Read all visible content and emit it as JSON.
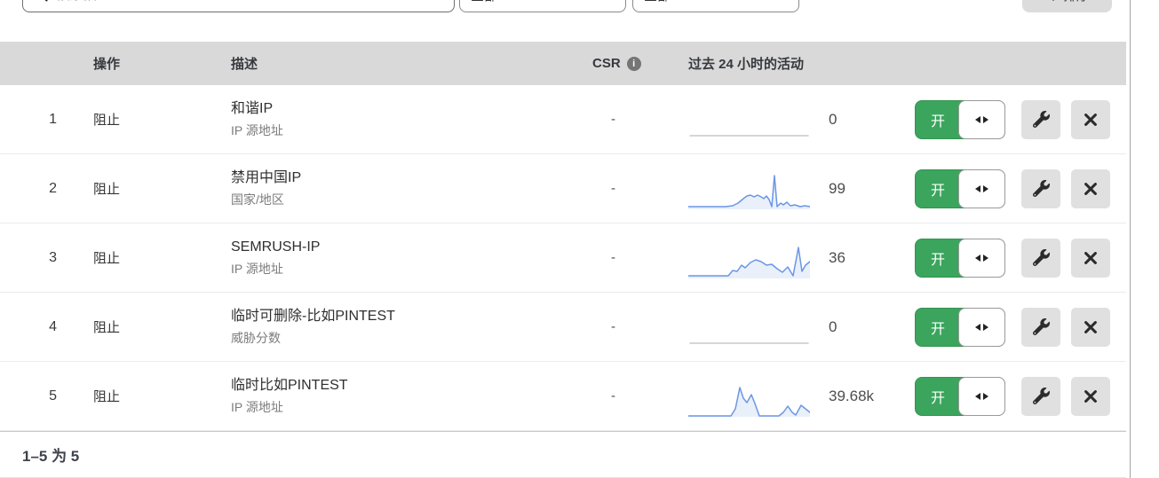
{
  "toolbar": {
    "search": {
      "placeholder": "搜索描述..."
    },
    "filter_1": {
      "value": "全部"
    },
    "filter_2": {
      "value": "全部"
    },
    "sort_button": {
      "label": "排序"
    }
  },
  "icons": {
    "search": "magnifier-icon",
    "info": "info-icon",
    "sort": "sort-arrows-icon",
    "toggle_handle": "left-right-arrows-icon",
    "wrench": "wrench-icon",
    "close": "close-icon"
  },
  "colors": {
    "toggle_green": "#3ba55d",
    "spark_blue": "#6b96e5",
    "spark_fill": "#e9f0fa",
    "spark_gray": "#c9c9c9",
    "header_bg": "#d9d9d9"
  },
  "table": {
    "headers": {
      "action": "操作",
      "description": "描述",
      "csr": "CSR",
      "activity": "过去 24 小时的活动"
    },
    "controls": {
      "toggle_on": "开"
    },
    "rows": [
      {
        "num": "1",
        "action": "阻止",
        "title": "和谐IP",
        "subtitle": "IP 源地址",
        "csr": "-",
        "value": "0",
        "sparkline": {
          "color": "#c9c9c9",
          "fill": false,
          "points": [
            [
              2,
              40
            ],
            [
              135,
              40
            ]
          ]
        }
      },
      {
        "num": "2",
        "action": "阻止",
        "title": "禁用中国IP",
        "subtitle": "国家/地区",
        "csr": "-",
        "value": "99",
        "sparkline": {
          "color": "#6b96e5",
          "fill": true,
          "points": [
            [
              0,
              42
            ],
            [
              14,
              42
            ],
            [
              28,
              42
            ],
            [
              42,
              42
            ],
            [
              50,
              41
            ],
            [
              56,
              38
            ],
            [
              62,
              33
            ],
            [
              66,
              30
            ],
            [
              70,
              29
            ],
            [
              74,
              31
            ],
            [
              78,
              29
            ],
            [
              82,
              31
            ],
            [
              85,
              33
            ],
            [
              88,
              30
            ],
            [
              91,
              34
            ],
            [
              94,
              42
            ],
            [
              97,
              7
            ],
            [
              100,
              42
            ],
            [
              104,
              38
            ],
            [
              107,
              40
            ],
            [
              111,
              37
            ],
            [
              115,
              41
            ],
            [
              120,
              40
            ],
            [
              126,
              42
            ],
            [
              131,
              41
            ],
            [
              137,
              42
            ]
          ]
        }
      },
      {
        "num": "3",
        "action": "阻止",
        "title": "SEMRUSH-IP",
        "subtitle": "IP 源地址",
        "csr": "-",
        "value": "36",
        "sparkline": {
          "color": "#6b96e5",
          "fill": true,
          "points": [
            [
              0,
              42
            ],
            [
              15,
              42
            ],
            [
              30,
              42
            ],
            [
              45,
              42
            ],
            [
              50,
              36
            ],
            [
              55,
              37
            ],
            [
              60,
              30
            ],
            [
              64,
              33
            ],
            [
              70,
              27
            ],
            [
              76,
              24
            ],
            [
              82,
              26
            ],
            [
              88,
              30
            ],
            [
              94,
              29
            ],
            [
              100,
              34
            ],
            [
              106,
              38
            ],
            [
              112,
              32
            ],
            [
              118,
              42
            ],
            [
              124,
              10
            ],
            [
              128,
              37
            ],
            [
              132,
              30
            ],
            [
              137,
              26
            ]
          ]
        }
      },
      {
        "num": "4",
        "action": "阻止",
        "title": "临时可删除-比如PINTEST",
        "subtitle": "威胁分数",
        "csr": "-",
        "value": "0",
        "sparkline": {
          "color": "#c9c9c9",
          "fill": false,
          "points": [
            [
              2,
              40
            ],
            [
              135,
              40
            ]
          ]
        }
      },
      {
        "num": "5",
        "action": "阻止",
        "title": "临时比如PINTEST",
        "subtitle": "IP 源地址",
        "csr": "-",
        "value": "39.68k",
        "sparkline": {
          "color": "#6b96e5",
          "fill": true,
          "points": [
            [
              0,
              44
            ],
            [
              16,
              44
            ],
            [
              32,
              44
            ],
            [
              48,
              44
            ],
            [
              53,
              36
            ],
            [
              58,
              12
            ],
            [
              62,
              24
            ],
            [
              66,
              29
            ],
            [
              71,
              20
            ],
            [
              75,
              30
            ],
            [
              80,
              44
            ],
            [
              92,
              44
            ],
            [
              102,
              44
            ],
            [
              107,
              40
            ],
            [
              112,
              33
            ],
            [
              117,
              40
            ],
            [
              121,
              43
            ],
            [
              127,
              32
            ],
            [
              132,
              36
            ],
            [
              137,
              40
            ]
          ]
        }
      }
    ]
  },
  "footer": {
    "summary": "1–5 为 5"
  }
}
